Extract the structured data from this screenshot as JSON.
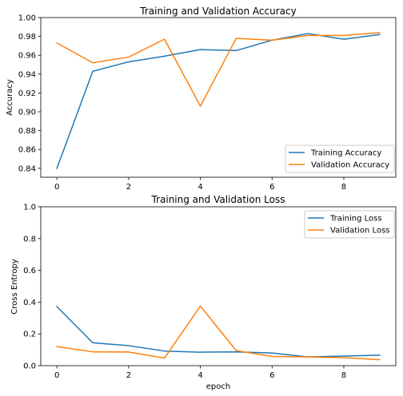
{
  "chart_data": [
    {
      "type": "line",
      "title": "Training and Validation Accuracy",
      "xlabel": "",
      "ylabel": "Accuracy",
      "xlim": [
        -0.45,
        9.45
      ],
      "ylim": [
        0.8305,
        1.0
      ],
      "xticks": [
        0,
        2,
        4,
        6,
        8
      ],
      "yticks": [
        0.84,
        0.86,
        0.88,
        0.9,
        0.92,
        0.94,
        0.96,
        0.98,
        1.0
      ],
      "ytick_labels": [
        "0.84",
        "0.86",
        "0.88",
        "0.90",
        "0.92",
        "0.94",
        "0.96",
        "0.98",
        "1.00"
      ],
      "x": [
        0,
        1,
        2,
        3,
        4,
        5,
        6,
        7,
        8,
        9
      ],
      "series": [
        {
          "name": "Training Accuracy",
          "color": "#1f77b4",
          "values": [
            0.84,
            0.943,
            0.953,
            0.959,
            0.966,
            0.965,
            0.976,
            0.983,
            0.977,
            0.982
          ]
        },
        {
          "name": "Validation Accuracy",
          "color": "#ff7f0e",
          "values": [
            0.973,
            0.952,
            0.958,
            0.977,
            0.906,
            0.978,
            0.976,
            0.981,
            0.981,
            0.984
          ]
        }
      ],
      "grid": false,
      "legend_position": "lower right"
    },
    {
      "type": "line",
      "title": "Training and Validation Loss",
      "xlabel": "epoch",
      "ylabel": "Cross Entropy",
      "xlim": [
        -0.45,
        9.45
      ],
      "ylim": [
        0,
        1.0
      ],
      "xticks": [
        0,
        2,
        4,
        6,
        8
      ],
      "yticks": [
        0.0,
        0.2,
        0.4,
        0.6,
        0.8,
        1.0
      ],
      "ytick_labels": [
        "0.0",
        "0.2",
        "0.4",
        "0.6",
        "0.8",
        "1.0"
      ],
      "x": [
        0,
        1,
        2,
        3,
        4,
        5,
        6,
        7,
        8,
        9
      ],
      "series": [
        {
          "name": "Training Loss",
          "color": "#1f77b4",
          "values": [
            0.372,
            0.144,
            0.126,
            0.092,
            0.085,
            0.087,
            0.08,
            0.055,
            0.06,
            0.066
          ]
        },
        {
          "name": "Validation Loss",
          "color": "#ff7f0e",
          "values": [
            0.12,
            0.087,
            0.086,
            0.048,
            0.375,
            0.095,
            0.058,
            0.055,
            0.05,
            0.037
          ]
        }
      ],
      "grid": false,
      "legend_position": "upper right"
    }
  ]
}
